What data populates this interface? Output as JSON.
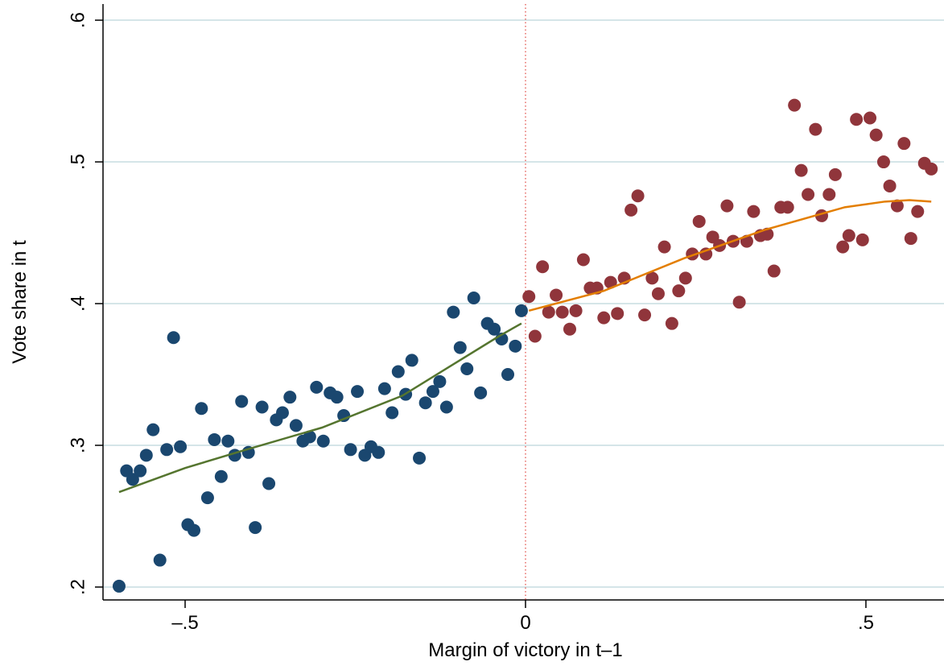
{
  "chart_data": {
    "type": "scatter",
    "x_label": "Margin of victory in t–1",
    "y_label": "Vote share in t",
    "xlim": [
      -0.6206,
      0.6147
    ],
    "ylim": [
      0.1909,
      0.6114
    ],
    "xticks": [
      {
        "value": -0.5,
        "label": "–.5"
      },
      0,
      {
        "value": 0.5,
        "label": ".5"
      }
    ],
    "yticks": [
      {
        "value": 0.2,
        "label": ".2"
      },
      {
        "value": 0.3,
        "label": ".3"
      },
      {
        "value": 0.4,
        "label": ".4"
      },
      {
        "value": 0.5,
        "label": ".5"
      },
      {
        "value": 0.6,
        "label": ".6"
      }
    ],
    "grid": true,
    "grid_color": "#d5e5e8",
    "vline": {
      "x": 0,
      "color": "#e0443e"
    },
    "series": [
      {
        "type": "scatter",
        "color": "#1a476f",
        "x": [
          -0.597,
          -0.586,
          -0.577,
          -0.566,
          -0.557,
          -0.547,
          -0.537,
          -0.527,
          -0.517,
          -0.507,
          -0.496,
          -0.487,
          -0.476,
          -0.467,
          -0.457,
          -0.447,
          -0.437,
          -0.427,
          -0.417,
          -0.407,
          -0.397,
          -0.387,
          -0.377,
          -0.366,
          -0.357,
          -0.346,
          -0.337,
          -0.327,
          -0.317,
          -0.307,
          -0.297,
          -0.287,
          -0.277,
          -0.267,
          -0.257,
          -0.247,
          -0.236,
          -0.227,
          -0.216,
          -0.207,
          -0.196,
          -0.187,
          -0.176,
          -0.167,
          -0.156,
          -0.147,
          -0.136,
          -0.126,
          -0.116,
          -0.106,
          -0.096,
          -0.086,
          -0.076,
          -0.066,
          -0.056,
          -0.046,
          -0.035,
          -0.026,
          -0.015,
          -0.006
        ],
        "values": [
          0.2006,
          0.282,
          0.276,
          0.282,
          0.293,
          0.311,
          0.219,
          0.297,
          0.376,
          0.299,
          0.244,
          0.24,
          0.326,
          0.263,
          0.304,
          0.278,
          0.303,
          0.293,
          0.331,
          0.295,
          0.242,
          0.327,
          0.273,
          0.318,
          0.323,
          0.334,
          0.314,
          0.303,
          0.306,
          0.341,
          0.303,
          0.337,
          0.334,
          0.321,
          0.297,
          0.338,
          0.293,
          0.299,
          0.295,
          0.34,
          0.323,
          0.352,
          0.336,
          0.36,
          0.291,
          0.33,
          0.338,
          0.345,
          0.327,
          0.394,
          0.369,
          0.354,
          0.404,
          0.337,
          0.386,
          0.382,
          0.375,
          0.35,
          0.37,
          0.395
        ]
      },
      {
        "type": "scatter",
        "color": "#90353b",
        "x": [
          0.005,
          0.014,
          0.025,
          0.034,
          0.045,
          0.054,
          0.065,
          0.074,
          0.085,
          0.095,
          0.105,
          0.115,
          0.125,
          0.135,
          0.145,
          0.155,
          0.165,
          0.175,
          0.186,
          0.195,
          0.204,
          0.215,
          0.225,
          0.235,
          0.245,
          0.255,
          0.265,
          0.275,
          0.285,
          0.296,
          0.305,
          0.314,
          0.325,
          0.335,
          0.345,
          0.355,
          0.365,
          0.375,
          0.385,
          0.395,
          0.405,
          0.415,
          0.426,
          0.435,
          0.446,
          0.455,
          0.466,
          0.475,
          0.486,
          0.495,
          0.506,
          0.515,
          0.526,
          0.535,
          0.546,
          0.556,
          0.566,
          0.576,
          0.586,
          0.596
        ],
        "values": [
          0.405,
          0.377,
          0.426,
          0.394,
          0.406,
          0.394,
          0.382,
          0.395,
          0.431,
          0.411,
          0.411,
          0.39,
          0.415,
          0.393,
          0.418,
          0.466,
          0.476,
          0.392,
          0.418,
          0.407,
          0.44,
          0.386,
          0.409,
          0.418,
          0.435,
          0.458,
          0.435,
          0.447,
          0.441,
          0.469,
          0.444,
          0.401,
          0.444,
          0.465,
          0.448,
          0.449,
          0.423,
          0.468,
          0.468,
          0.54,
          0.494,
          0.477,
          0.523,
          0.462,
          0.477,
          0.491,
          0.44,
          0.448,
          0.53,
          0.445,
          0.531,
          0.519,
          0.5,
          0.483,
          0.469,
          0.513,
          0.446,
          0.465,
          0.499,
          0.495
        ]
      },
      {
        "type": "line",
        "color": "#55752f",
        "x": [
          -0.597,
          -0.5,
          -0.417,
          -0.299,
          -0.181,
          -0.11,
          -0.039,
          -0.006
        ],
        "values": [
          0.267,
          0.284,
          0.296,
          0.3125,
          0.335,
          0.356,
          0.377,
          0.386
        ]
      },
      {
        "type": "line",
        "color": "#e37e00",
        "x": [
          0.005,
          0.115,
          0.233,
          0.351,
          0.469,
          0.528,
          0.564,
          0.596
        ],
        "values": [
          0.395,
          0.409,
          0.432,
          0.452,
          0.468,
          0.472,
          0.473,
          0.472
        ]
      }
    ]
  }
}
